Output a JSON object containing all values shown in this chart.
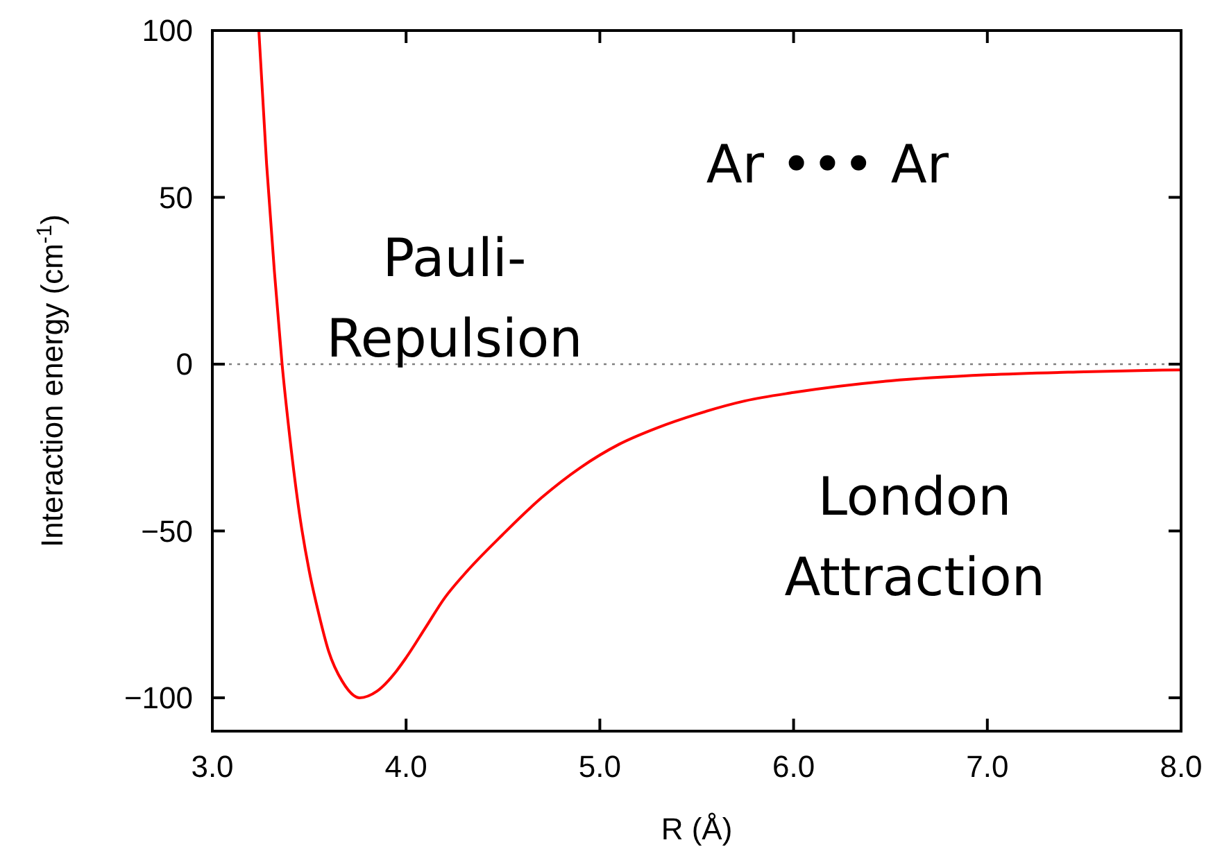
{
  "chart_data": {
    "type": "line",
    "xlabel": "R (Å)",
    "ylabel": "Interaction energy (cm$^{-1}$)",
    "xlim": [
      3.0,
      8.0
    ],
    "ylim": [
      -110,
      100
    ],
    "xticks": [
      {
        "value": 3,
        "label": "3.0"
      },
      {
        "value": 4,
        "label": "4.0"
      },
      {
        "value": 5,
        "label": "5.0"
      },
      {
        "value": 6,
        "label": "6.0"
      },
      {
        "value": 7,
        "label": "7.0"
      },
      {
        "value": 8,
        "label": "8.0"
      }
    ],
    "yticks": [
      {
        "value": -100,
        "label": "−100"
      },
      {
        "value": -50,
        "label": "−50"
      },
      0,
      50,
      100
    ],
    "marker": "none",
    "line_style": "solid",
    "series": [
      {
        "color": "#ff0000",
        "x": [
          3.24,
          3.28,
          3.32,
          3.36,
          3.4,
          3.45,
          3.5,
          3.55,
          3.6,
          3.67,
          3.76,
          3.85,
          3.95,
          4.0,
          4.1,
          4.2,
          4.3,
          4.5,
          4.7,
          4.9,
          5.1,
          5.3,
          5.5,
          5.75,
          6.0,
          6.5,
          7.0,
          7.5,
          8.0
        ],
        "values": [
          100,
          60,
          28,
          0,
          -22,
          -45,
          -62,
          -75,
          -86,
          -95,
          -100,
          -98,
          -92,
          -88,
          -79,
          -70,
          -63,
          -51,
          -40,
          -31,
          -24,
          -19,
          -15,
          -11,
          -8.5,
          -5,
          -3.2,
          -2.3,
          -1.7
        ]
      }
    ],
    "ref_lines": [
      {
        "axis": "y",
        "value": 0,
        "color": "#808080",
        "line_style": "dotted"
      }
    ],
    "annotations": [
      "Pauli-\nRepulsion",
      "Ar ••• Ar",
      "London\nAttraction"
    ]
  }
}
